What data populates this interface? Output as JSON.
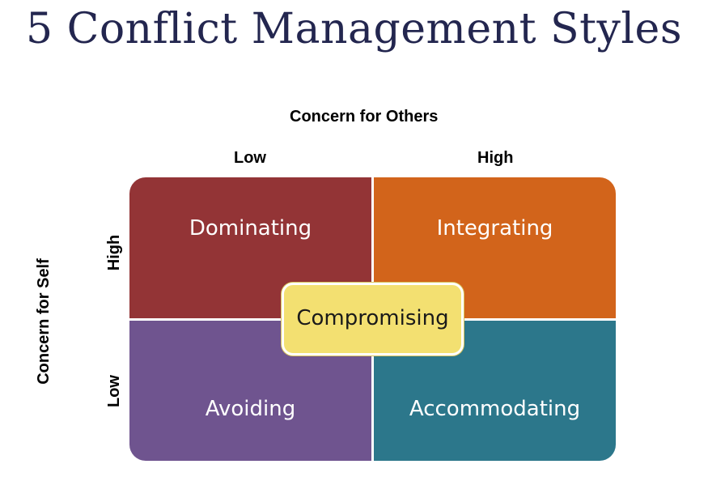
{
  "title": "5 Conflict Management Styles",
  "axes": {
    "x_title": "Concern for Others",
    "x_low": "Low",
    "x_high": "High",
    "y_title": "Concern for Self",
    "y_high": "High",
    "y_low": "Low"
  },
  "quadrants": {
    "top_left": {
      "label": "Dominating",
      "color": "#933436"
    },
    "top_right": {
      "label": "Integrating",
      "color": "#d2641b"
    },
    "bottom_left": {
      "label": "Avoiding",
      "color": "#6f548f"
    },
    "bottom_right": {
      "label": "Accommodating",
      "color": "#2c778b"
    },
    "center": {
      "label": "Compromising",
      "color": "#f3e071"
    }
  }
}
